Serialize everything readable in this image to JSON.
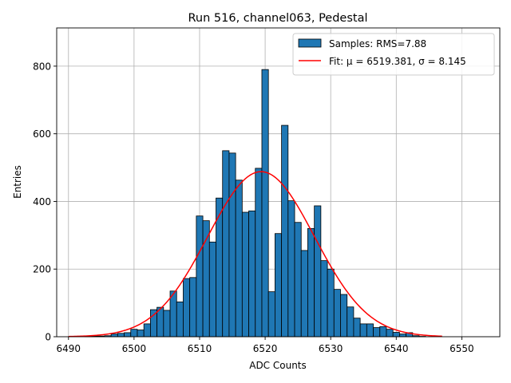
{
  "chart_data": {
    "type": "bar",
    "title": "Run 516, channel063, Pedestal",
    "xlabel": "ADC Counts",
    "ylabel": "Entries",
    "xlim": [
      6488.2,
      6555.8
    ],
    "ylim": [
      0,
      913
    ],
    "grid": true,
    "legend_position": "top-right",
    "x_ticks": [
      6490,
      6500,
      6510,
      6520,
      6530,
      6540,
      6550
    ],
    "y_ticks": [
      0,
      200,
      400,
      600,
      800
    ],
    "bin_width": 1,
    "bins": [
      {
        "x": 6491,
        "count": 0
      },
      {
        "x": 6492,
        "count": 0
      },
      {
        "x": 6493,
        "count": 1
      },
      {
        "x": 6494,
        "count": 2
      },
      {
        "x": 6495,
        "count": 2
      },
      {
        "x": 6496,
        "count": 3
      },
      {
        "x": 6497,
        "count": 8
      },
      {
        "x": 6498,
        "count": 10
      },
      {
        "x": 6499,
        "count": 12
      },
      {
        "x": 6500,
        "count": 22
      },
      {
        "x": 6501,
        "count": 20
      },
      {
        "x": 6502,
        "count": 38
      },
      {
        "x": 6503,
        "count": 80
      },
      {
        "x": 6504,
        "count": 87
      },
      {
        "x": 6505,
        "count": 78
      },
      {
        "x": 6506,
        "count": 135
      },
      {
        "x": 6507,
        "count": 103
      },
      {
        "x": 6508,
        "count": 172
      },
      {
        "x": 6509,
        "count": 175
      },
      {
        "x": 6510,
        "count": 357
      },
      {
        "x": 6511,
        "count": 343
      },
      {
        "x": 6512,
        "count": 280
      },
      {
        "x": 6513,
        "count": 410
      },
      {
        "x": 6514,
        "count": 550
      },
      {
        "x": 6515,
        "count": 543
      },
      {
        "x": 6516,
        "count": 463
      },
      {
        "x": 6517,
        "count": 368
      },
      {
        "x": 6518,
        "count": 372
      },
      {
        "x": 6519,
        "count": 498
      },
      {
        "x": 6520,
        "count": 790
      },
      {
        "x": 6521,
        "count": 133
      },
      {
        "x": 6522,
        "count": 305
      },
      {
        "x": 6523,
        "count": 625
      },
      {
        "x": 6524,
        "count": 402
      },
      {
        "x": 6525,
        "count": 338
      },
      {
        "x": 6526,
        "count": 255
      },
      {
        "x": 6527,
        "count": 320
      },
      {
        "x": 6528,
        "count": 387
      },
      {
        "x": 6529,
        "count": 225
      },
      {
        "x": 6530,
        "count": 200
      },
      {
        "x": 6531,
        "count": 140
      },
      {
        "x": 6532,
        "count": 125
      },
      {
        "x": 6533,
        "count": 88
      },
      {
        "x": 6534,
        "count": 55
      },
      {
        "x": 6535,
        "count": 38
      },
      {
        "x": 6536,
        "count": 38
      },
      {
        "x": 6537,
        "count": 27
      },
      {
        "x": 6538,
        "count": 30
      },
      {
        "x": 6539,
        "count": 22
      },
      {
        "x": 6540,
        "count": 13
      },
      {
        "x": 6541,
        "count": 8
      },
      {
        "x": 6542,
        "count": 12
      },
      {
        "x": 6543,
        "count": 3
      },
      {
        "x": 6544,
        "count": 1
      }
    ],
    "fit": {
      "mu": 6519.381,
      "sigma": 8.145,
      "amplitude": 488,
      "x_range": [
        6490,
        6547
      ]
    },
    "series": [
      {
        "name": "Samples: RMS=7.88",
        "kind": "histogram",
        "color": "#1f77b4",
        "edge_color": "#000000"
      },
      {
        "name": "Fit: μ = 6519.381, σ = 8.145",
        "kind": "line",
        "color": "#ff0000"
      }
    ]
  }
}
